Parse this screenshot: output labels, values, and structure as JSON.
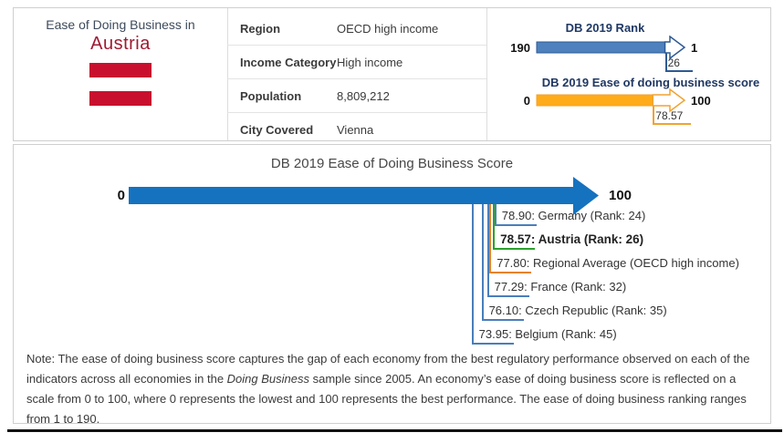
{
  "header": {
    "title_line": "Ease of Doing Business in",
    "country": "Austria",
    "flag_red": "#c8102e"
  },
  "facts": {
    "rows": [
      {
        "label": "Region",
        "value": "OECD high income"
      },
      {
        "label": "Income Category",
        "value": "High income"
      },
      {
        "label": "Population",
        "value": "8,809,212"
      },
      {
        "label": "City Covered",
        "value": "Vienna"
      }
    ]
  },
  "chart_data": [
    {
      "type": "bar",
      "subtype": "arrow-gauge",
      "title": "DB 2019 Rank",
      "axis": {
        "min": 190,
        "max": 1
      },
      "min_label": "190",
      "max_label": "1",
      "value": 26,
      "value_label": "26",
      "bar_color": "#4e81bd",
      "line_color": "#2e5a94"
    },
    {
      "type": "bar",
      "subtype": "arrow-gauge",
      "title": "DB 2019 Ease of doing business score",
      "axis": {
        "min": 0,
        "max": 100
      },
      "min_label": "0",
      "max_label": "100",
      "value": 78.57,
      "value_label": "78.57",
      "bar_color": "#ffab1a",
      "line_color": "#f0a330"
    },
    {
      "type": "bar",
      "subtype": "score-comparison-arrow",
      "title": "DB 2019 Ease of Doing Business Score",
      "axis": {
        "min": 0,
        "max": 100
      },
      "min_label": "0",
      "max_label": "100",
      "arrow_color": "#1572bf",
      "series": [
        {
          "name": "Germany",
          "value": 78.9,
          "rank": 24,
          "label": "78.90: Germany (Rank: 24)",
          "color": "#4a7ebb",
          "bold": false
        },
        {
          "name": "Austria",
          "value": 78.57,
          "rank": 26,
          "label": "78.57: Austria (Rank: 26)",
          "color": "#2ca02c",
          "bold": true
        },
        {
          "name": "Regional Average (OECD high income)",
          "value": 77.8,
          "rank": null,
          "label": "77.80: Regional Average (OECD high income)",
          "color": "#e8821e",
          "bold": false
        },
        {
          "name": "France",
          "value": 77.29,
          "rank": 32,
          "label": "77.29: France (Rank: 32)",
          "color": "#4a7ebb",
          "bold": false
        },
        {
          "name": "Czech Republic",
          "value": 76.1,
          "rank": 35,
          "label": "76.10: Czech Republic (Rank: 35)",
          "color": "#4a7ebb",
          "bold": false
        },
        {
          "name": "Belgium",
          "value": 73.95,
          "rank": 45,
          "label": "73.95: Belgium (Rank: 45)",
          "color": "#4a7ebb",
          "bold": false
        }
      ]
    }
  ],
  "note": {
    "segments": [
      {
        "text": "Note: The ease of doing business score captures the gap of each economy from the best regulatory performance observed on each of the indicators across all economies in the ",
        "italic": false
      },
      {
        "text": "Doing Business",
        "italic": true
      },
      {
        "text": " sample since 2005. An economy’s ease of doing business score is reflected on a scale from 0 to 100, where 0 represents the lowest and 100 represents the best performance. The ease of doing business ranking ranges from 1 to 190.",
        "italic": false
      }
    ]
  }
}
